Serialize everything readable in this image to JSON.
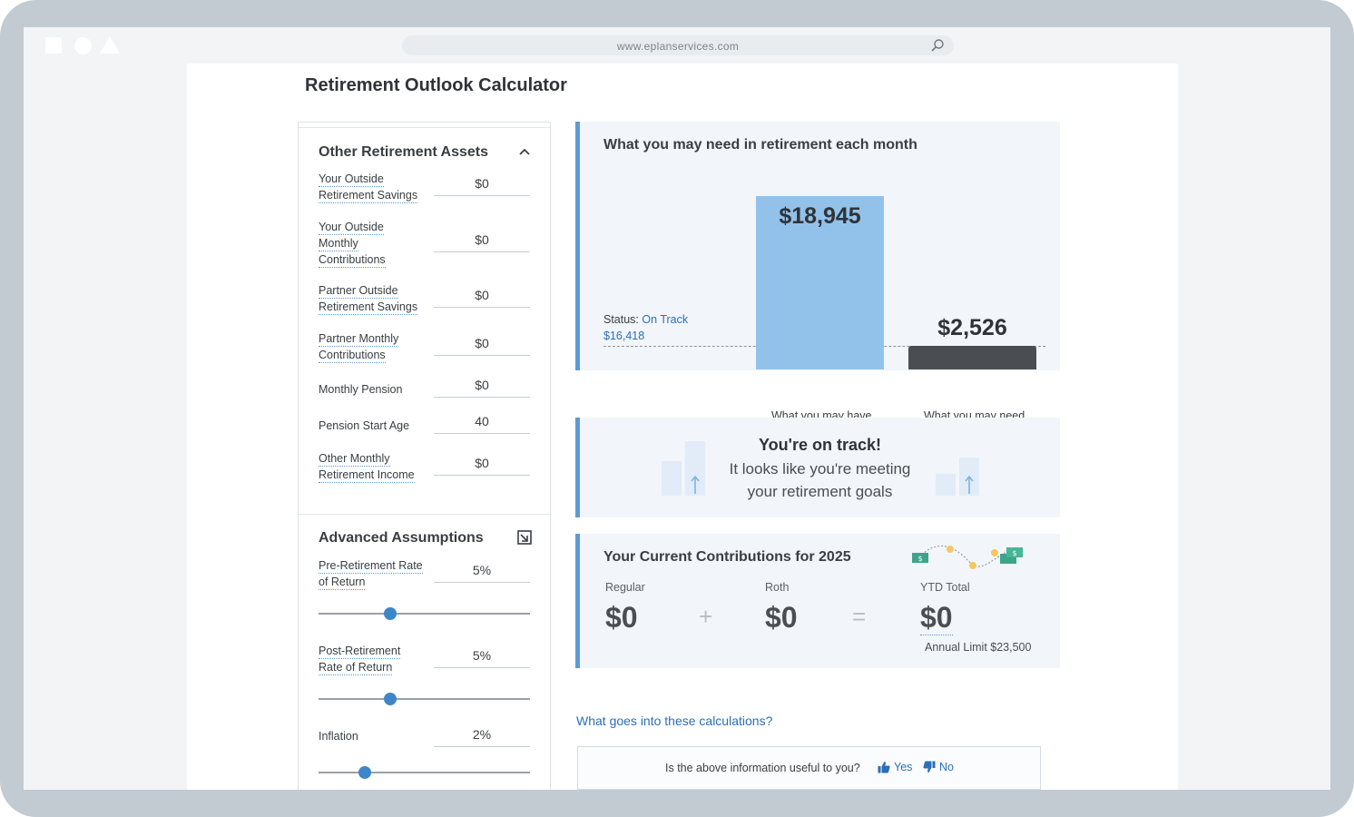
{
  "browser": {
    "url": "www.eplanservices.com"
  },
  "page": {
    "title": "Retirement Outlook Calculator"
  },
  "other_assets": {
    "title": "Other Retirement Assets",
    "fields": [
      {
        "label": "Your Outside Retirement Savings",
        "value": "$0"
      },
      {
        "label": "Your Outside Monthly Contributions",
        "value": "$0"
      },
      {
        "label": "Partner Outside Retirement Savings",
        "value": "$0"
      },
      {
        "label": "Partner Monthly Contributions",
        "value": "$0"
      },
      {
        "label": "Monthly Pension",
        "value": "$0"
      },
      {
        "label": "Pension Start Age",
        "value": "40"
      },
      {
        "label": "Other Monthly Retirement Income",
        "value": "$0"
      }
    ]
  },
  "advanced": {
    "title": "Advanced Assumptions",
    "fields": [
      {
        "label": "Pre-Retirement Rate of Return",
        "value": "5%",
        "slider_fraction": 0.34
      },
      {
        "label": "Post-Retirement Rate of Return",
        "value": "5%",
        "slider_fraction": 0.34
      },
      {
        "label": "Inflation",
        "value": "2%",
        "slider_fraction": 0.22
      }
    ]
  },
  "needs_card": {
    "title": "What you may need in retirement each month",
    "status_label": "Status:",
    "status_value": "On Track",
    "status_amount": "$16,418",
    "have_value": "$18,945",
    "need_value": "$2,526",
    "have_label": "What you may have",
    "need_label": "What you may need"
  },
  "track_card": {
    "title": "You're on track!",
    "line1": "It looks like you're meeting",
    "line2": "your retirement goals"
  },
  "contrib_card": {
    "title": "Your Current Contributions for 2025",
    "regular_label": "Regular",
    "regular_value": "$0",
    "plus": "+",
    "roth_label": "Roth",
    "roth_value": "$0",
    "equals": "=",
    "ytd_label": "YTD Total",
    "ytd_value": "$0",
    "annual_limit": "Annual Limit $23,500"
  },
  "calc_link": "What goes into these calculations?",
  "feedback": {
    "question": "Is the above information useful to you?",
    "yes": "Yes",
    "no": "No"
  },
  "colors": {
    "accent_blue": "#5b9bd5",
    "have_bar": "#92c2ea",
    "need_bar": "#4a4d52",
    "link": "#2a6fb8"
  }
}
